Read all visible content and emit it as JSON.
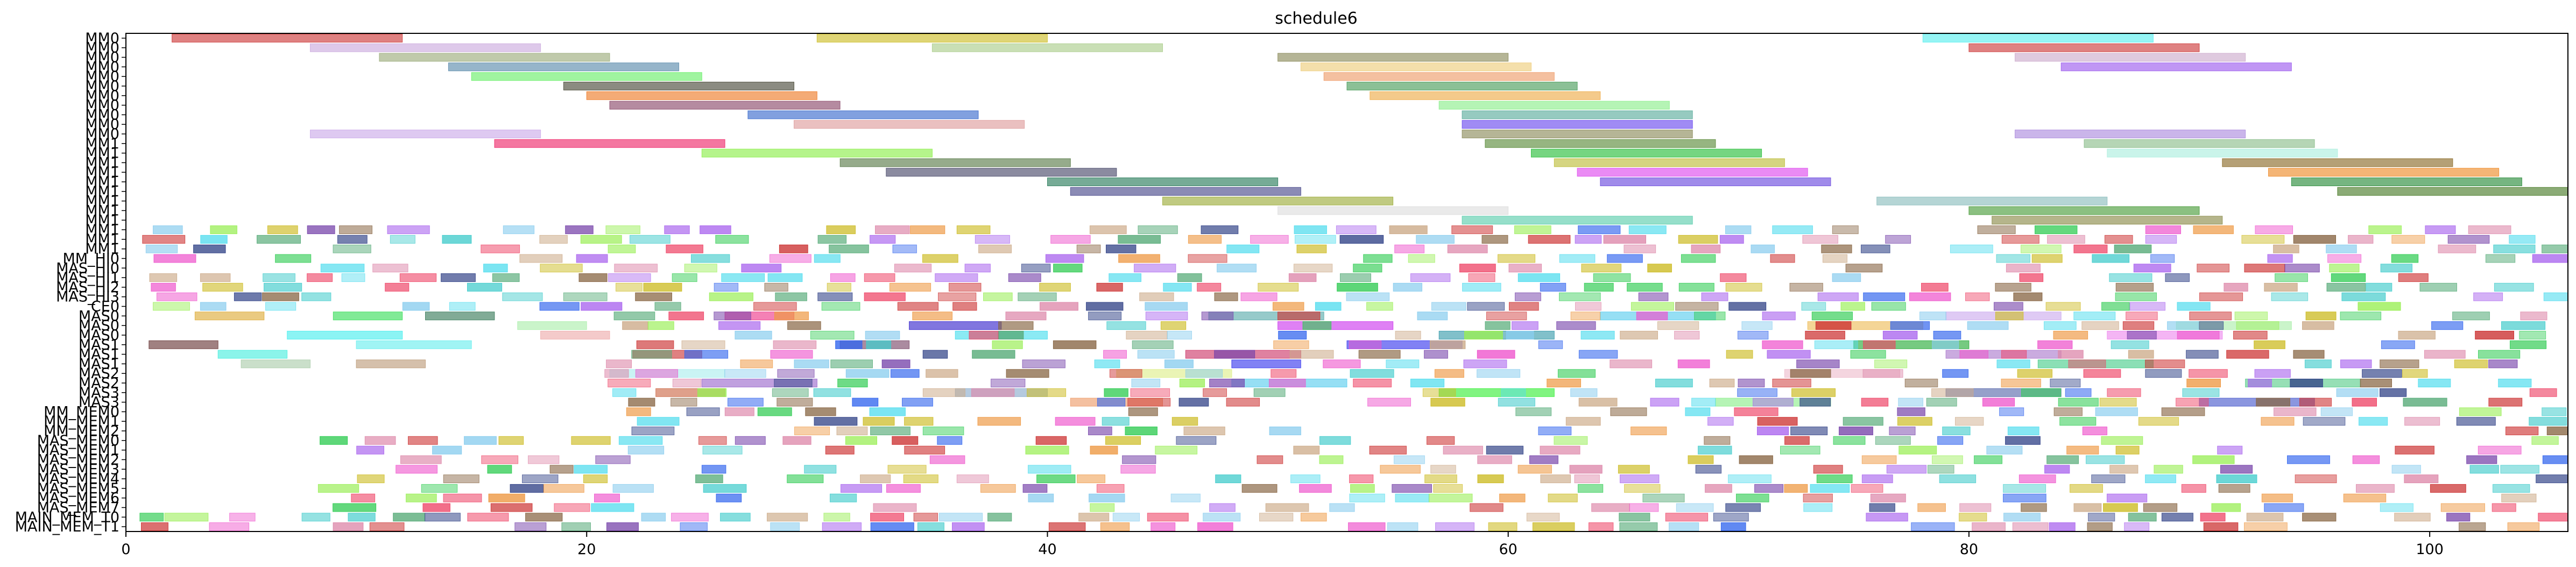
{
  "chart_data": {
    "type": "gantt",
    "title": "schedule6",
    "xlabel": "",
    "ylabel": "",
    "xlim": [
      0,
      106
    ],
    "xticks": [
      0,
      20,
      40,
      60,
      80,
      100
    ],
    "grid": false,
    "legend": "none",
    "rows": [
      "MM0",
      "MM0",
      "MM0",
      "MM0",
      "MM0",
      "MM0",
      "MM0",
      "MM0",
      "MM0",
      "MM0",
      "MM0",
      "MM1",
      "MM1",
      "MM1",
      "MM1",
      "MM1",
      "MM1",
      "MM1",
      "MM1",
      "MM1",
      "MM1",
      "MM1",
      "MM1",
      "MM_HI0",
      "MAS_HI0",
      "MAS_HI1",
      "MAS_HI2",
      "MAS_HI3",
      "CE0",
      "MAS0",
      "MAS0",
      "MAS0",
      "MAS1",
      "MAS1",
      "MAS1",
      "MAS2",
      "MAS2",
      "MAS3",
      "MAS3",
      "MM_MEM0",
      "MM_MEM1",
      "MM_MEM2",
      "MAS_MEM0",
      "MAS_MEM1",
      "MAS_MEM2",
      "MAS_MEM3",
      "MAS_MEM4",
      "MAS_MEM5",
      "MAS_MEM6",
      "MAS_MEM7",
      "MAIN_MEM_T0",
      "MAIN_MEM_T1"
    ],
    "bars": [
      {
        "row": 0,
        "start": 2,
        "end": 12,
        "color": "#cc3333"
      },
      {
        "row": 0,
        "start": 30,
        "end": 40,
        "color": "#ccbb22"
      },
      {
        "row": 0,
        "start": 78,
        "end": 88,
        "color": "#55eeee"
      },
      {
        "row": 1,
        "start": 8,
        "end": 18,
        "color": "#c9a8dd"
      },
      {
        "row": 1,
        "start": 35,
        "end": 45,
        "color": "#a8cc88"
      },
      {
        "row": 1,
        "start": 80,
        "end": 90,
        "color": "#cc3333"
      },
      {
        "row": 2,
        "start": 11,
        "end": 21,
        "color": "#99aa77"
      },
      {
        "row": 2,
        "start": 50,
        "end": 60,
        "color": "#888855"
      },
      {
        "row": 2,
        "start": 82,
        "end": 92,
        "color": "#ccaacc"
      },
      {
        "row": 3,
        "start": 14,
        "end": 24,
        "color": "#5588aa"
      },
      {
        "row": 3,
        "start": 51,
        "end": 61,
        "color": "#eecc77"
      },
      {
        "row": 3,
        "start": 84,
        "end": 94,
        "color": "#9955ee"
      },
      {
        "row": 4,
        "start": 15,
        "end": 25,
        "color": "#66ee66"
      },
      {
        "row": 4,
        "start": 52,
        "end": 62,
        "color": "#ee9966"
      },
      {
        "row": 5,
        "start": 19,
        "end": 29,
        "color": "#444433"
      },
      {
        "row": 5,
        "start": 53,
        "end": 63,
        "color": "#449955"
      },
      {
        "row": 6,
        "start": 20,
        "end": 30,
        "color": "#ee7722"
      },
      {
        "row": 6,
        "start": 54,
        "end": 64,
        "color": "#eeaa44"
      },
      {
        "row": 7,
        "start": 21,
        "end": 31,
        "color": "#884466"
      },
      {
        "row": 7,
        "start": 57,
        "end": 67,
        "color": "#88ee88"
      },
      {
        "row": 8,
        "start": 27,
        "end": 37,
        "color": "#3366cc"
      },
      {
        "row": 8,
        "start": 58,
        "end": 68,
        "color": "#55aa99"
      },
      {
        "row": 9,
        "start": 29,
        "end": 39,
        "color": "#dd9999"
      },
      {
        "row": 9,
        "start": 58,
        "end": 68,
        "color": "#6644ee"
      },
      {
        "row": 10,
        "start": 8,
        "end": 18,
        "color": "#c9a8e8"
      },
      {
        "row": 10,
        "start": 58,
        "end": 68,
        "color": "#888855"
      },
      {
        "row": 10,
        "start": 82,
        "end": 92,
        "color": "#aa88dd"
      },
      {
        "row": 11,
        "start": 16,
        "end": 26,
        "color": "#ee2266"
      },
      {
        "row": 11,
        "start": 59,
        "end": 69,
        "color": "#558833"
      },
      {
        "row": 11,
        "start": 85,
        "end": 95,
        "color": "#88bb88"
      },
      {
        "row": 12,
        "start": 25,
        "end": 35,
        "color": "#88ee44"
      },
      {
        "row": 12,
        "start": 61,
        "end": 71,
        "color": "#22bb33"
      },
      {
        "row": 12,
        "start": 86,
        "end": 96,
        "color": "#aaeedd"
      },
      {
        "row": 13,
        "start": 31,
        "end": 41,
        "color": "#557744"
      },
      {
        "row": 13,
        "start": 62,
        "end": 72,
        "color": "#bbbb33"
      },
      {
        "row": 13,
        "start": 91,
        "end": 101,
        "color": "#886622"
      },
      {
        "row": 14,
        "start": 33,
        "end": 43,
        "color": "#444466"
      },
      {
        "row": 14,
        "start": 63,
        "end": 73,
        "color": "#dd44ee"
      },
      {
        "row": 14,
        "start": 93,
        "end": 103,
        "color": "#ee8822"
      },
      {
        "row": 15,
        "start": 40,
        "end": 50,
        "color": "#227755"
      },
      {
        "row": 15,
        "start": 64,
        "end": 74,
        "color": "#6644dd"
      },
      {
        "row": 15,
        "start": 94,
        "end": 104,
        "color": "#228833"
      },
      {
        "row": 16,
        "start": 41,
        "end": 51,
        "color": "#444488"
      },
      {
        "row": 16,
        "start": 96,
        "end": 106,
        "color": "#447722"
      },
      {
        "row": 17,
        "start": 45,
        "end": 55,
        "color": "#99aa33"
      },
      {
        "row": 17,
        "start": 76,
        "end": 86,
        "color": "#88bbbb"
      },
      {
        "row": 18,
        "start": 50,
        "end": 60,
        "color": "#dddddd"
      },
      {
        "row": 18,
        "start": 80,
        "end": 90,
        "color": "#449933"
      },
      {
        "row": 19,
        "start": 58,
        "end": 68,
        "color": "#55ccaa"
      },
      {
        "row": 19,
        "start": 81,
        "end": 91,
        "color": "#888844"
      },
      {
        "row": 29,
        "start": 3,
        "end": 6,
        "color": "#ddaa33"
      },
      {
        "row": 29,
        "start": 9,
        "end": 12,
        "color": "#33dd55"
      },
      {
        "row": 29,
        "start": 13,
        "end": 16,
        "color": "#337755"
      },
      {
        "row": 29,
        "start": 26,
        "end": 29,
        "color": "#ee3388"
      },
      {
        "row": 29,
        "start": 47,
        "end": 52,
        "color": "#55aaaa"
      },
      {
        "row": 29,
        "start": 64,
        "end": 69,
        "color": "#55ccee"
      },
      {
        "row": 29,
        "start": 79,
        "end": 84,
        "color": "#ccaaee"
      },
      {
        "row": 30,
        "start": 17,
        "end": 20,
        "color": "#aaeeaa"
      },
      {
        "row": 30,
        "start": 34,
        "end": 38,
        "color": "#3322cc"
      },
      {
        "row": 30,
        "start": 50,
        "end": 55,
        "color": "#cc33ee"
      },
      {
        "row": 30,
        "start": 73,
        "end": 78,
        "color": "#eebb55"
      },
      {
        "row": 30,
        "start": 89,
        "end": 94,
        "color": "#aaeeaa"
      },
      {
        "row": 31,
        "start": 7,
        "end": 12,
        "color": "#44eeee"
      },
      {
        "row": 31,
        "start": 18,
        "end": 21,
        "color": "#eeaaaa"
      },
      {
        "row": 31,
        "start": 36,
        "end": 40,
        "color": "#44ddee"
      },
      {
        "row": 31,
        "start": 57,
        "end": 62,
        "color": "#3399aa"
      },
      {
        "row": 31,
        "start": 86,
        "end": 91,
        "color": "#ee88ee"
      },
      {
        "row": 32,
        "start": 1,
        "end": 4,
        "color": "#663333"
      },
      {
        "row": 32,
        "start": 10,
        "end": 15,
        "color": "#66eeee"
      },
      {
        "row": 32,
        "start": 31,
        "end": 34,
        "color": "#774466"
      },
      {
        "row": 32,
        "start": 53,
        "end": 58,
        "color": "#3333ee"
      },
      {
        "row": 32,
        "start": 75,
        "end": 80,
        "color": "#22aa33"
      },
      {
        "row": 33,
        "start": 4,
        "end": 7,
        "color": "#44eedd"
      },
      {
        "row": 33,
        "start": 22,
        "end": 25,
        "color": "#cc3333"
      },
      {
        "row": 33,
        "start": 46,
        "end": 51,
        "color": "#cc3366"
      },
      {
        "row": 33,
        "start": 79,
        "end": 84,
        "color": "#aa77cc"
      },
      {
        "row": 34,
        "start": 5,
        "end": 8,
        "color": "#aaccaa"
      },
      {
        "row": 34,
        "start": 10,
        "end": 13,
        "color": "#bb9977"
      },
      {
        "row": 34,
        "start": 48,
        "end": 51,
        "color": "#3333ee"
      },
      {
        "row": 34,
        "start": 83,
        "end": 88,
        "color": "#44cc88"
      },
      {
        "row": 35,
        "start": 21,
        "end": 26,
        "color": "#aaeeee"
      },
      {
        "row": 35,
        "start": 43,
        "end": 48,
        "color": "#ddee88"
      },
      {
        "row": 35,
        "start": 72,
        "end": 77,
        "color": "#eebbcc"
      },
      {
        "row": 36,
        "start": 25,
        "end": 30,
        "color": "#9966cc"
      },
      {
        "row": 36,
        "start": 48,
        "end": 53,
        "color": "#55ccee"
      },
      {
        "row": 36,
        "start": 92,
        "end": 97,
        "color": "#55cc88"
      },
      {
        "row": 37,
        "start": 23,
        "end": 26,
        "color": "#cc6644"
      },
      {
        "row": 37,
        "start": 36,
        "end": 40,
        "color": "#88aacc"
      },
      {
        "row": 37,
        "start": 57,
        "end": 62,
        "color": "#33ee33"
      },
      {
        "row": 37,
        "start": 79,
        "end": 84,
        "color": "#5566aa"
      },
      {
        "row": 38,
        "start": 41,
        "end": 45,
        "color": "#ee9966"
      },
      {
        "row": 38,
        "start": 69,
        "end": 74,
        "color": "#88ee88"
      },
      {
        "row": 38,
        "start": 90,
        "end": 95,
        "color": "#4455cc"
      }
    ],
    "dense_regions": [
      {
        "row_from": 20,
        "row_to": 28,
        "start": 0,
        "end": 106,
        "gap": 1.8
      },
      {
        "row_from": 29,
        "row_to": 38,
        "start": 20,
        "end": 106,
        "gap": 2.2
      },
      {
        "row_from": 39,
        "row_to": 41,
        "start": 20,
        "end": 51,
        "gap": 2.0
      },
      {
        "row_from": 39,
        "row_to": 41,
        "start": 60,
        "end": 106,
        "gap": 2.0
      },
      {
        "row_from": 42,
        "row_to": 49,
        "start": 8,
        "end": 106,
        "gap": 2.3
      },
      {
        "row_from": 50,
        "row_to": 51,
        "start": 0,
        "end": 106,
        "gap": 1.0
      }
    ],
    "palette": [
      "#cc3333",
      "#33cc55",
      "#3366ee",
      "#ccbb22",
      "#ee55cc",
      "#55ddee",
      "#886644",
      "#aa66ee",
      "#55aa77",
      "#ee9944",
      "#334488",
      "#dd88aa",
      "#99ee55",
      "#44cccc",
      "#ccaa88",
      "#7744aa",
      "#ee4466",
      "#88ccee"
    ]
  }
}
